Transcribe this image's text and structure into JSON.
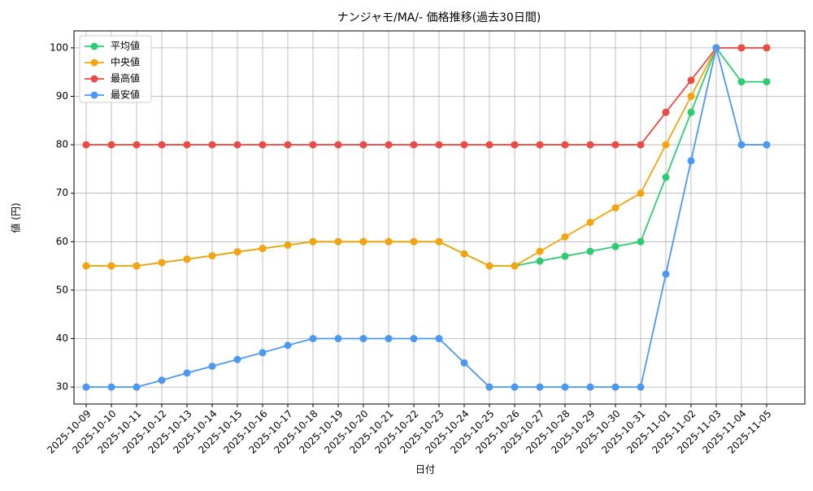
{
  "chart_data": {
    "type": "line",
    "title": "ナンジャモ/MA/- 価格推移(過去30日間)",
    "x_label": "日付",
    "y_label": "値 (円)",
    "categories": [
      "2025-10-09",
      "2025-10-10",
      "2025-10-11",
      "2025-10-12",
      "2025-10-13",
      "2025-10-14",
      "2025-10-15",
      "2025-10-16",
      "2025-10-17",
      "2025-10-18",
      "2025-10-19",
      "2025-10-20",
      "2025-10-21",
      "2025-10-22",
      "2025-10-23",
      "2025-10-24",
      "2025-10-25",
      "2025-10-26",
      "2025-10-27",
      "2025-10-28",
      "2025-10-29",
      "2025-10-30",
      "2025-10-31",
      "2025-11-01",
      "2025-11-02",
      "2025-11-03",
      "2025-11-04",
      "2025-11-05"
    ],
    "series": [
      {
        "name": "平均値",
        "color": "#2ecc71",
        "values": [
          55,
          55,
          55,
          55.7,
          56.4,
          57.1,
          57.9,
          58.6,
          59.3,
          60,
          60,
          60,
          60,
          60,
          60,
          57.5,
          55,
          55,
          56,
          57,
          58,
          59,
          60,
          73.3,
          86.7,
          100,
          93,
          93
        ]
      },
      {
        "name": "中央値",
        "color": "#f5a40f",
        "values": [
          55,
          55,
          55,
          55.7,
          56.4,
          57.1,
          57.9,
          58.6,
          59.3,
          60,
          60,
          60,
          60,
          60,
          60,
          57.5,
          55,
          55,
          58,
          61,
          64,
          67,
          70,
          80,
          90,
          100,
          100,
          100
        ]
      },
      {
        "name": "最高値",
        "color": "#eb4b45",
        "values": [
          80,
          80,
          80,
          80,
          80,
          80,
          80,
          80,
          80,
          80,
          80,
          80,
          80,
          80,
          80,
          80,
          80,
          80,
          80,
          80,
          80,
          80,
          80,
          86.7,
          93.3,
          100,
          100,
          100
        ]
      },
      {
        "name": "最安値",
        "color": "#4a98f3",
        "values": [
          30,
          30,
          30,
          31.4,
          32.9,
          34.3,
          35.7,
          37.1,
          38.6,
          40,
          40,
          40,
          40,
          40,
          40,
          35,
          30,
          30,
          30,
          30,
          30,
          30,
          30,
          53.3,
          76.7,
          100,
          80,
          80
        ]
      }
    ],
    "ylim": [
      26.5,
      103.5
    ],
    "yticks": [
      30,
      40,
      50,
      60,
      70,
      80,
      90,
      100
    ],
    "grid": true,
    "legend": "upper left"
  }
}
